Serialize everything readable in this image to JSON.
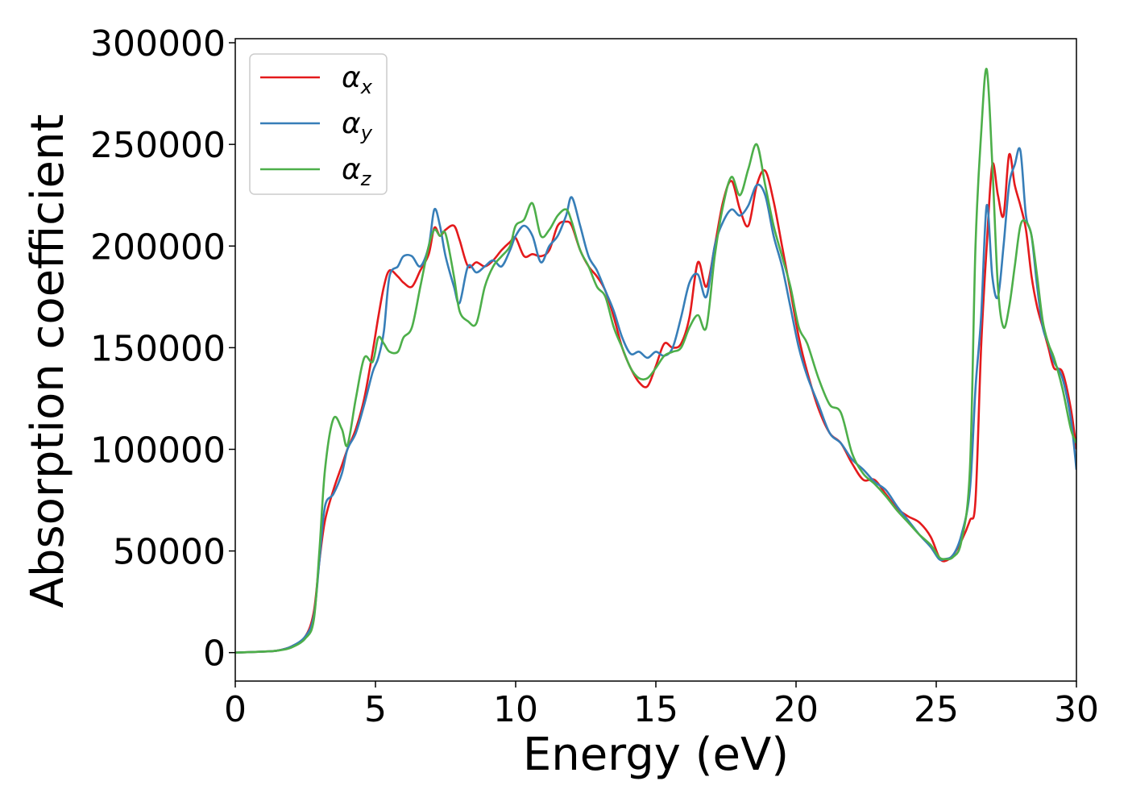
{
  "chart_data": {
    "type": "line",
    "title": "",
    "xlabel": "Energy (eV)",
    "ylabel": "Absorption coefficient",
    "xlim": [
      0,
      30
    ],
    "ylim": [
      -14000,
      302000
    ],
    "xticks": [
      0,
      5,
      10,
      15,
      20,
      25,
      30
    ],
    "xtick_labels": [
      "0",
      "5",
      "10",
      "15",
      "20",
      "25",
      "30"
    ],
    "yticks": [
      0,
      50000,
      100000,
      150000,
      200000,
      250000,
      300000
    ],
    "ytick_labels": [
      "0",
      "50000",
      "100000",
      "150000",
      "200000",
      "250000",
      "300000"
    ],
    "grid": false,
    "legend": {
      "position": "top-left"
    },
    "series": [
      {
        "name": "α",
        "subscript": "x",
        "color": "#e41a1c",
        "x": [
          0,
          1,
          1.5,
          2,
          2.5,
          2.8,
          3.0,
          3.2,
          3.5,
          3.8,
          4.0,
          4.3,
          4.6,
          4.9,
          5.1,
          5.3,
          5.5,
          5.8,
          6.0,
          6.3,
          6.6,
          6.9,
          7.1,
          7.3,
          7.5,
          7.8,
          8.0,
          8.3,
          8.6,
          8.9,
          9.2,
          9.5,
          9.8,
          10.0,
          10.3,
          10.6,
          10.9,
          11.2,
          11.5,
          11.8,
          12.0,
          12.3,
          12.6,
          12.9,
          13.2,
          13.5,
          13.8,
          14.1,
          14.4,
          14.7,
          15.0,
          15.3,
          15.6,
          15.9,
          16.2,
          16.5,
          16.8,
          17.1,
          17.4,
          17.7,
          18.0,
          18.3,
          18.6,
          18.9,
          19.2,
          19.5,
          19.8,
          20.1,
          20.4,
          20.8,
          21.2,
          21.6,
          22.0,
          22.4,
          22.8,
          23.2,
          23.6,
          24.0,
          24.4,
          24.8,
          25.1,
          25.3,
          25.6,
          25.9,
          26.2,
          26.4,
          26.6,
          26.8,
          27.0,
          27.2,
          27.4,
          27.6,
          27.8,
          28.0,
          28.2,
          28.4,
          28.6,
          28.8,
          29.0,
          29.2,
          29.5,
          29.8,
          30.0
        ],
        "y": [
          0,
          500,
          1000,
          3000,
          8000,
          20000,
          45000,
          65000,
          80000,
          92000,
          100000,
          110000,
          125000,
          148000,
          165000,
          180000,
          188000,
          185000,
          182000,
          180000,
          188000,
          196000,
          209000,
          205000,
          208000,
          210000,
          203000,
          190000,
          192000,
          190000,
          193000,
          198000,
          202000,
          204000,
          195000,
          196000,
          195000,
          198000,
          210000,
          212000,
          210000,
          198000,
          190000,
          185000,
          178000,
          165000,
          150000,
          140000,
          133000,
          131000,
          141000,
          152000,
          150000,
          152000,
          165000,
          192000,
          180000,
          200000,
          222000,
          232000,
          218000,
          210000,
          230000,
          237000,
          222000,
          200000,
          178000,
          155000,
          138000,
          120000,
          108000,
          103000,
          93000,
          85000,
          85000,
          78000,
          71000,
          67000,
          64000,
          57000,
          47000,
          45000,
          48000,
          55000,
          65000,
          75000,
          150000,
          200000,
          240000,
          225000,
          215000,
          245000,
          230000,
          220000,
          208000,
          185000,
          170000,
          160000,
          150000,
          140000,
          138000,
          120000,
          100000
        ]
      },
      {
        "name": "α",
        "subscript": "y",
        "color": "#377eb8",
        "x": [
          0,
          1,
          1.5,
          2,
          2.5,
          2.8,
          3.0,
          3.2,
          3.5,
          3.8,
          4.0,
          4.3,
          4.6,
          4.9,
          5.1,
          5.3,
          5.5,
          5.8,
          6.0,
          6.3,
          6.6,
          6.9,
          7.1,
          7.3,
          7.5,
          7.8,
          8.0,
          8.3,
          8.6,
          8.9,
          9.2,
          9.5,
          9.8,
          10.0,
          10.3,
          10.6,
          10.9,
          11.2,
          11.5,
          11.8,
          12.0,
          12.3,
          12.6,
          12.9,
          13.2,
          13.5,
          13.8,
          14.1,
          14.4,
          14.7,
          15.0,
          15.3,
          15.6,
          15.9,
          16.2,
          16.5,
          16.8,
          17.1,
          17.4,
          17.7,
          18.0,
          18.3,
          18.6,
          18.9,
          19.2,
          19.5,
          19.8,
          20.1,
          20.4,
          20.8,
          21.2,
          21.6,
          22.0,
          22.4,
          22.8,
          23.2,
          23.6,
          24.0,
          24.4,
          24.8,
          25.1,
          25.3,
          25.6,
          25.9,
          26.2,
          26.4,
          26.6,
          26.8,
          27.0,
          27.2,
          27.4,
          27.6,
          27.8,
          28.0,
          28.2,
          28.4,
          28.6,
          28.8,
          29.0,
          29.2,
          29.5,
          29.8,
          30.0
        ],
        "y": [
          0,
          500,
          1000,
          3000,
          8000,
          18000,
          45000,
          72000,
          78000,
          88000,
          100000,
          108000,
          122000,
          138000,
          145000,
          158000,
          185000,
          190000,
          195000,
          195000,
          190000,
          200000,
          218000,
          210000,
          195000,
          180000,
          172000,
          190000,
          187000,
          190000,
          193000,
          190000,
          198000,
          205000,
          210000,
          205000,
          192000,
          200000,
          205000,
          215000,
          224000,
          210000,
          195000,
          188000,
          178000,
          168000,
          155000,
          147000,
          148000,
          145000,
          148000,
          146000,
          150000,
          165000,
          182000,
          186000,
          175000,
          200000,
          212000,
          218000,
          215000,
          220000,
          230000,
          225000,
          205000,
          190000,
          170000,
          150000,
          136000,
          122000,
          108000,
          103000,
          95000,
          90000,
          84000,
          80000,
          72000,
          65000,
          58000,
          52000,
          46000,
          46000,
          48000,
          58000,
          80000,
          130000,
          165000,
          220000,
          185000,
          175000,
          200000,
          230000,
          240000,
          247000,
          215000,
          205000,
          180000,
          160000,
          152000,
          143000,
          135000,
          115000,
          90000
        ]
      },
      {
        "name": "α",
        "subscript": "z",
        "color": "#4daf4a",
        "x": [
          0,
          1,
          1.5,
          2,
          2.5,
          2.8,
          3.0,
          3.2,
          3.5,
          3.8,
          4.0,
          4.3,
          4.6,
          4.9,
          5.1,
          5.3,
          5.5,
          5.8,
          6.0,
          6.3,
          6.6,
          6.9,
          7.1,
          7.3,
          7.5,
          7.8,
          8.0,
          8.3,
          8.6,
          8.9,
          9.2,
          9.5,
          9.8,
          10.0,
          10.3,
          10.6,
          10.9,
          11.2,
          11.5,
          11.8,
          12.0,
          12.3,
          12.6,
          12.9,
          13.2,
          13.5,
          13.8,
          14.1,
          14.4,
          14.7,
          15.0,
          15.3,
          15.6,
          15.9,
          16.2,
          16.5,
          16.8,
          17.1,
          17.4,
          17.7,
          18.0,
          18.3,
          18.6,
          18.9,
          19.2,
          19.5,
          19.8,
          20.1,
          20.4,
          20.8,
          21.2,
          21.6,
          22.0,
          22.4,
          22.8,
          23.2,
          23.6,
          24.0,
          24.4,
          24.8,
          25.1,
          25.3,
          25.6,
          25.9,
          26.2,
          26.4,
          26.6,
          26.8,
          27.0,
          27.2,
          27.4,
          27.6,
          27.8,
          28.0,
          28.2,
          28.4,
          28.6,
          28.8,
          29.0,
          29.2,
          29.5,
          29.8,
          30.0
        ],
        "y": [
          0,
          500,
          1000,
          2500,
          7000,
          16000,
          50000,
          90000,
          115000,
          110000,
          102000,
          125000,
          145000,
          143000,
          155000,
          152000,
          148000,
          148000,
          155000,
          160000,
          180000,
          200000,
          208000,
          205000,
          206000,
          185000,
          168000,
          163000,
          162000,
          180000,
          190000,
          195000,
          200000,
          210000,
          213000,
          221000,
          205000,
          208000,
          215000,
          218000,
          212000,
          198000,
          190000,
          180000,
          175000,
          160000,
          150000,
          140000,
          135000,
          135000,
          140000,
          146000,
          148000,
          150000,
          160000,
          166000,
          160000,
          195000,
          220000,
          234000,
          225000,
          238000,
          250000,
          230000,
          210000,
          195000,
          180000,
          160000,
          152000,
          135000,
          122000,
          118000,
          98000,
          88000,
          83000,
          77000,
          70000,
          64000,
          58000,
          53000,
          47000,
          46000,
          47000,
          55000,
          90000,
          200000,
          255000,
          287000,
          240000,
          180000,
          160000,
          170000,
          190000,
          210000,
          212000,
          205000,
          185000,
          163000,
          152000,
          145000,
          130000,
          110000,
          103000
        ]
      }
    ]
  }
}
